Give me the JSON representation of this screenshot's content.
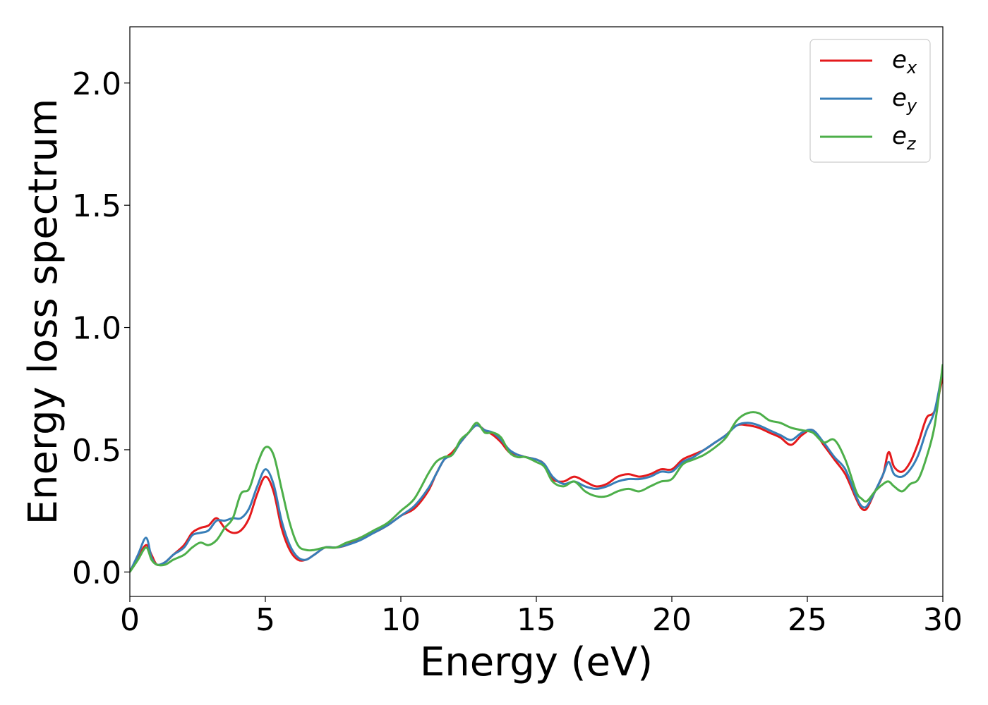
{
  "chart_data": {
    "type": "line",
    "xlabel": "Energy (eV)",
    "ylabel": "Energy loss spectrum",
    "xlim": [
      0,
      30
    ],
    "ylim": [
      -0.1,
      2.23
    ],
    "xticks": [
      0,
      5,
      10,
      15,
      20,
      25,
      30
    ],
    "xtick_labels": [
      "0",
      "5",
      "10",
      "15",
      "20",
      "25",
      "30"
    ],
    "yticks": [
      0.0,
      0.5,
      1.0,
      1.5,
      2.0
    ],
    "ytick_labels": [
      "0.0",
      "0.5",
      "1.0",
      "1.5",
      "2.0"
    ],
    "grid": false,
    "legend_position": "top-right",
    "series": [
      {
        "name": "e_x",
        "label_base": "e",
        "label_sub": "x",
        "color": "#e41a1c",
        "x": [
          0,
          0.3,
          0.6,
          0.8,
          1.0,
          1.3,
          1.6,
          2.0,
          2.3,
          2.6,
          2.9,
          3.2,
          3.5,
          3.8,
          4.1,
          4.4,
          4.7,
          5.0,
          5.3,
          5.6,
          5.9,
          6.2,
          6.5,
          6.8,
          7.2,
          7.6,
          8.0,
          8.5,
          9.0,
          9.5,
          10.0,
          10.5,
          11.0,
          11.3,
          11.6,
          11.9,
          12.2,
          12.5,
          12.8,
          13.1,
          13.4,
          13.7,
          14.0,
          14.3,
          14.6,
          15.0,
          15.3,
          15.6,
          16.0,
          16.4,
          16.8,
          17.2,
          17.6,
          18.0,
          18.4,
          18.8,
          19.2,
          19.6,
          20.0,
          20.4,
          20.8,
          21.2,
          21.6,
          22.0,
          22.4,
          22.8,
          23.2,
          23.6,
          24.0,
          24.4,
          24.8,
          25.2,
          25.6,
          26.0,
          26.4,
          26.8,
          27.0,
          27.2,
          27.5,
          27.8,
          28.0,
          28.2,
          28.5,
          28.8,
          29.1,
          29.4,
          29.7,
          30.0
        ],
        "y": [
          0.0,
          0.06,
          0.11,
          0.07,
          0.03,
          0.04,
          0.07,
          0.11,
          0.16,
          0.18,
          0.19,
          0.22,
          0.18,
          0.16,
          0.17,
          0.22,
          0.32,
          0.39,
          0.33,
          0.18,
          0.09,
          0.05,
          0.05,
          0.07,
          0.1,
          0.1,
          0.11,
          0.14,
          0.16,
          0.19,
          0.23,
          0.26,
          0.33,
          0.4,
          0.46,
          0.49,
          0.53,
          0.57,
          0.6,
          0.58,
          0.56,
          0.53,
          0.49,
          0.48,
          0.47,
          0.46,
          0.44,
          0.38,
          0.37,
          0.39,
          0.37,
          0.35,
          0.36,
          0.39,
          0.4,
          0.39,
          0.4,
          0.42,
          0.42,
          0.46,
          0.48,
          0.5,
          0.53,
          0.56,
          0.6,
          0.6,
          0.59,
          0.57,
          0.55,
          0.52,
          0.56,
          0.58,
          0.52,
          0.46,
          0.4,
          0.3,
          0.26,
          0.26,
          0.33,
          0.4,
          0.49,
          0.43,
          0.41,
          0.45,
          0.53,
          0.63,
          0.66,
          0.8
        ]
      },
      {
        "name": "e_y",
        "label_base": "e",
        "label_sub": "y",
        "color": "#377eb8",
        "x": [
          0,
          0.3,
          0.6,
          0.8,
          1.0,
          1.3,
          1.6,
          2.0,
          2.3,
          2.6,
          2.9,
          3.2,
          3.5,
          3.8,
          4.1,
          4.4,
          4.7,
          5.0,
          5.3,
          5.6,
          5.9,
          6.2,
          6.5,
          6.8,
          7.2,
          7.6,
          8.0,
          8.5,
          9.0,
          9.5,
          10.0,
          10.5,
          11.0,
          11.3,
          11.6,
          11.9,
          12.2,
          12.5,
          12.8,
          13.1,
          13.4,
          13.7,
          14.0,
          14.3,
          14.6,
          15.0,
          15.3,
          15.6,
          16.0,
          16.4,
          16.8,
          17.2,
          17.6,
          18.0,
          18.4,
          18.8,
          19.2,
          19.6,
          20.0,
          20.4,
          20.8,
          21.2,
          21.6,
          22.0,
          22.4,
          22.8,
          23.2,
          23.6,
          24.0,
          24.4,
          24.8,
          25.2,
          25.6,
          26.0,
          26.4,
          26.8,
          27.0,
          27.2,
          27.5,
          27.8,
          28.0,
          28.2,
          28.5,
          28.8,
          29.1,
          29.4,
          29.7,
          30.0
        ],
        "y": [
          0.0,
          0.07,
          0.14,
          0.06,
          0.03,
          0.04,
          0.07,
          0.1,
          0.15,
          0.16,
          0.17,
          0.21,
          0.21,
          0.22,
          0.22,
          0.26,
          0.35,
          0.42,
          0.36,
          0.21,
          0.11,
          0.06,
          0.05,
          0.07,
          0.1,
          0.1,
          0.11,
          0.13,
          0.16,
          0.19,
          0.23,
          0.27,
          0.34,
          0.4,
          0.46,
          0.48,
          0.53,
          0.57,
          0.6,
          0.58,
          0.57,
          0.54,
          0.5,
          0.48,
          0.47,
          0.46,
          0.44,
          0.39,
          0.36,
          0.37,
          0.35,
          0.34,
          0.35,
          0.37,
          0.38,
          0.38,
          0.39,
          0.41,
          0.41,
          0.45,
          0.47,
          0.5,
          0.53,
          0.56,
          0.6,
          0.61,
          0.6,
          0.58,
          0.56,
          0.54,
          0.57,
          0.58,
          0.53,
          0.47,
          0.42,
          0.31,
          0.27,
          0.27,
          0.33,
          0.4,
          0.45,
          0.4,
          0.39,
          0.42,
          0.48,
          0.58,
          0.66,
          0.83
        ]
      },
      {
        "name": "e_z",
        "label_base": "e",
        "label_sub": "z",
        "color": "#4daf4a",
        "x": [
          0,
          0.3,
          0.6,
          0.8,
          1.0,
          1.3,
          1.6,
          2.0,
          2.3,
          2.6,
          2.9,
          3.2,
          3.5,
          3.8,
          4.1,
          4.4,
          4.7,
          5.0,
          5.3,
          5.6,
          5.9,
          6.2,
          6.5,
          6.8,
          7.2,
          7.6,
          8.0,
          8.5,
          9.0,
          9.5,
          10.0,
          10.5,
          11.0,
          11.3,
          11.6,
          11.9,
          12.2,
          12.5,
          12.8,
          13.1,
          13.4,
          13.7,
          14.0,
          14.3,
          14.6,
          15.0,
          15.3,
          15.6,
          16.0,
          16.4,
          16.8,
          17.2,
          17.6,
          18.0,
          18.4,
          18.8,
          19.2,
          19.6,
          20.0,
          20.4,
          20.8,
          21.2,
          21.6,
          22.0,
          22.4,
          22.8,
          23.2,
          23.6,
          24.0,
          24.4,
          24.8,
          25.2,
          25.6,
          26.0,
          26.4,
          26.8,
          27.0,
          27.2,
          27.5,
          27.8,
          28.0,
          28.2,
          28.5,
          28.8,
          29.1,
          29.4,
          29.7,
          30.0
        ],
        "y": [
          0.0,
          0.05,
          0.1,
          0.05,
          0.03,
          0.03,
          0.05,
          0.07,
          0.1,
          0.12,
          0.11,
          0.13,
          0.18,
          0.22,
          0.32,
          0.34,
          0.44,
          0.51,
          0.48,
          0.34,
          0.2,
          0.11,
          0.09,
          0.09,
          0.1,
          0.1,
          0.12,
          0.14,
          0.17,
          0.2,
          0.25,
          0.3,
          0.4,
          0.45,
          0.47,
          0.48,
          0.54,
          0.57,
          0.61,
          0.57,
          0.57,
          0.55,
          0.49,
          0.47,
          0.47,
          0.45,
          0.43,
          0.37,
          0.35,
          0.37,
          0.33,
          0.31,
          0.31,
          0.33,
          0.34,
          0.33,
          0.35,
          0.37,
          0.38,
          0.44,
          0.46,
          0.48,
          0.51,
          0.55,
          0.62,
          0.65,
          0.65,
          0.62,
          0.61,
          0.59,
          0.58,
          0.57,
          0.53,
          0.54,
          0.46,
          0.33,
          0.3,
          0.29,
          0.33,
          0.36,
          0.37,
          0.35,
          0.33,
          0.36,
          0.38,
          0.47,
          0.6,
          0.85
        ]
      }
    ]
  }
}
